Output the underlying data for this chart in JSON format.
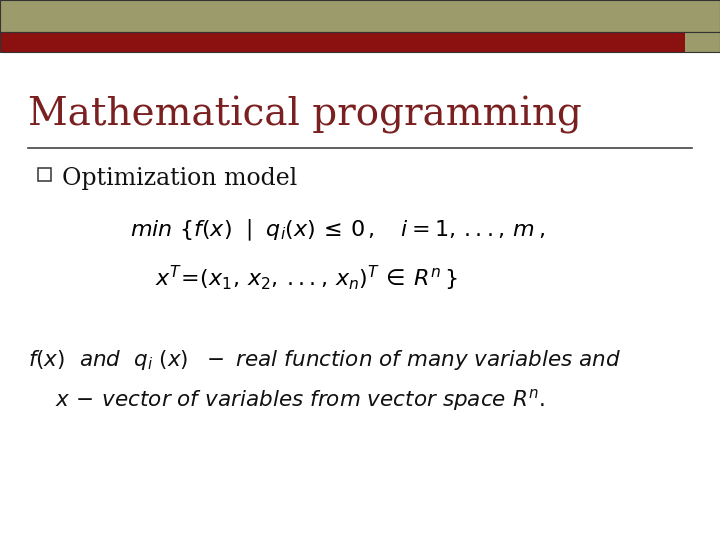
{
  "title": "Mathematical programming",
  "title_color": "#7B2020",
  "title_fontsize": 28,
  "bg_color": "#FFFFFF",
  "header_bar1_color": "#9B9B6B",
  "header_bar2_color": "#8B1010",
  "header_sq_color": "#6B1010",
  "accent_color": "#8B1010",
  "line_color": "#444444",
  "formula_color": "#000000",
  "desc_color": "#111111"
}
